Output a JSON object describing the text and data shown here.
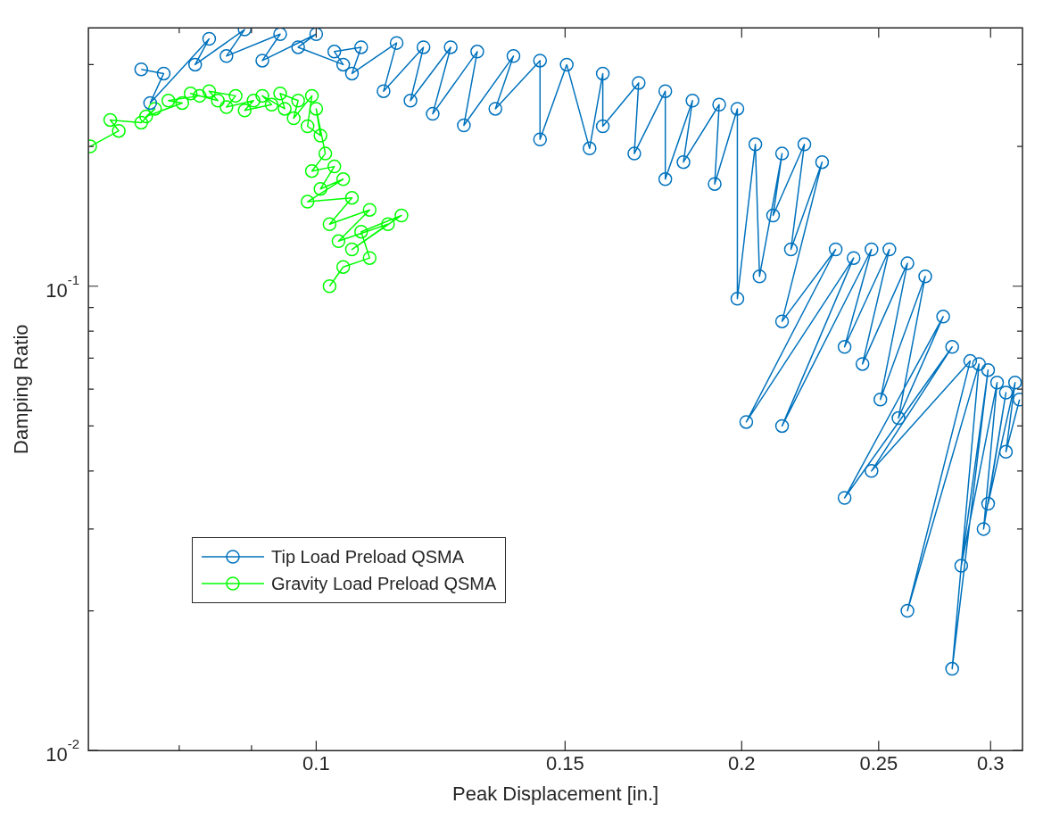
{
  "chart_data": {
    "type": "line",
    "xlabel": "Peak Displacement [in.]",
    "ylabel": "Damping Ratio",
    "log": "xy",
    "marker": "circle",
    "grid": false,
    "legend": "bottom left",
    "xlim": [
      0.069,
      0.316
    ],
    "xticks": [
      {
        "value": 0.08,
        "label": null
      },
      {
        "value": 0.09,
        "label": null
      },
      0.1,
      0.15,
      0.2,
      0.25,
      0.3
    ],
    "ylim": [
      0.01,
      0.36
    ],
    "yticks": [
      {
        "value": 0.01,
        "label": "10$^{-2}$"
      },
      {
        "value": 0.02,
        "label": null
      },
      {
        "value": 0.03,
        "label": null
      },
      {
        "value": 0.04,
        "label": null
      },
      {
        "value": 0.05,
        "label": null
      },
      {
        "value": 0.06,
        "label": null
      },
      {
        "value": 0.07,
        "label": null
      },
      {
        "value": 0.08,
        "label": null
      },
      {
        "value": 0.09,
        "label": null
      },
      {
        "value": 0.1,
        "label": "10$^{-1}$"
      },
      {
        "value": 0.2,
        "label": null
      },
      {
        "value": 0.3,
        "label": null
      }
    ],
    "series": [
      {
        "name": "Tip Load Preload QSMA",
        "color": "#0072bd",
        "x": [
          0.0752,
          0.078,
          0.0763,
          0.084,
          0.0821,
          0.089,
          0.0864,
          0.0943,
          0.0916,
          0.1,
          0.0971,
          0.1045,
          0.103,
          0.1076,
          0.106,
          0.114,
          0.1116,
          0.1191,
          0.1166,
          0.1245,
          0.1209,
          0.13,
          0.1272,
          0.1379,
          0.1339,
          0.144,
          0.144,
          0.1504,
          0.1561,
          0.1595,
          0.1595,
          0.1691,
          0.1679,
          0.1766,
          0.1766,
          0.1846,
          0.1819,
          0.1928,
          0.1914,
          0.1986,
          0.1986,
          0.2045,
          0.2059,
          0.2136,
          0.2105,
          0.2215,
          0.2167,
          0.228,
          0.2136,
          0.2331,
          0.2015,
          0.24,
          0.2136,
          0.2471,
          0.2365,
          0.2544,
          0.2435,
          0.262,
          0.2507,
          0.2697,
          0.2582,
          0.2777,
          0.2365,
          0.2818,
          0.2471,
          0.2902,
          0.262,
          0.2944,
          0.2818,
          0.2988,
          0.286,
          0.3032,
          0.2966,
          0.3076,
          0.2988,
          0.3122,
          0.3076,
          0.3145
        ],
        "values": [
          0.293,
          0.287,
          0.248,
          0.341,
          0.3,
          0.357,
          0.313,
          0.349,
          0.306,
          0.349,
          0.327,
          0.3,
          0.32,
          0.327,
          0.287,
          0.334,
          0.263,
          0.327,
          0.251,
          0.327,
          0.235,
          0.32,
          0.222,
          0.313,
          0.241,
          0.306,
          0.207,
          0.3,
          0.198,
          0.287,
          0.221,
          0.274,
          0.193,
          0.263,
          0.17,
          0.251,
          0.185,
          0.246,
          0.166,
          0.241,
          0.094,
          0.202,
          0.105,
          0.193,
          0.142,
          0.202,
          0.12,
          0.185,
          0.084,
          0.12,
          0.051,
          0.115,
          0.05,
          0.12,
          0.074,
          0.12,
          0.068,
          0.112,
          0.057,
          0.105,
          0.052,
          0.086,
          0.035,
          0.074,
          0.04,
          0.069,
          0.02,
          0.068,
          0.015,
          0.066,
          0.025,
          0.062,
          0.03,
          0.059,
          0.034,
          0.062,
          0.044,
          0.057
        ]
      },
      {
        "name": "Gravity Load Preload QSMA",
        "color": "#00ff00",
        "x": [
          0.0692,
          0.0725,
          0.0715,
          0.0752,
          0.0769,
          0.0758,
          0.0804,
          0.0786,
          0.0827,
          0.0815,
          0.0852,
          0.084,
          0.0877,
          0.0864,
          0.0903,
          0.089,
          0.093,
          0.0916,
          0.095,
          0.0943,
          0.0971,
          0.0964,
          0.0993,
          0.0986,
          0.1007,
          0.1,
          0.1015,
          0.0993,
          0.103,
          0.1007,
          0.1045,
          0.0986,
          0.106,
          0.1022,
          0.1091,
          0.1037,
          0.1124,
          0.106,
          0.1149,
          0.1076,
          0.1091,
          0.1045,
          0.1022
        ],
        "values": [
          0.2,
          0.216,
          0.228,
          0.225,
          0.241,
          0.232,
          0.248,
          0.251,
          0.257,
          0.26,
          0.251,
          0.263,
          0.257,
          0.243,
          0.251,
          0.239,
          0.246,
          0.257,
          0.241,
          0.26,
          0.251,
          0.23,
          0.257,
          0.221,
          0.211,
          0.241,
          0.193,
          0.177,
          0.181,
          0.162,
          0.17,
          0.152,
          0.155,
          0.136,
          0.146,
          0.125,
          0.136,
          0.12,
          0.142,
          0.131,
          0.115,
          0.11,
          0.1
        ]
      }
    ]
  }
}
